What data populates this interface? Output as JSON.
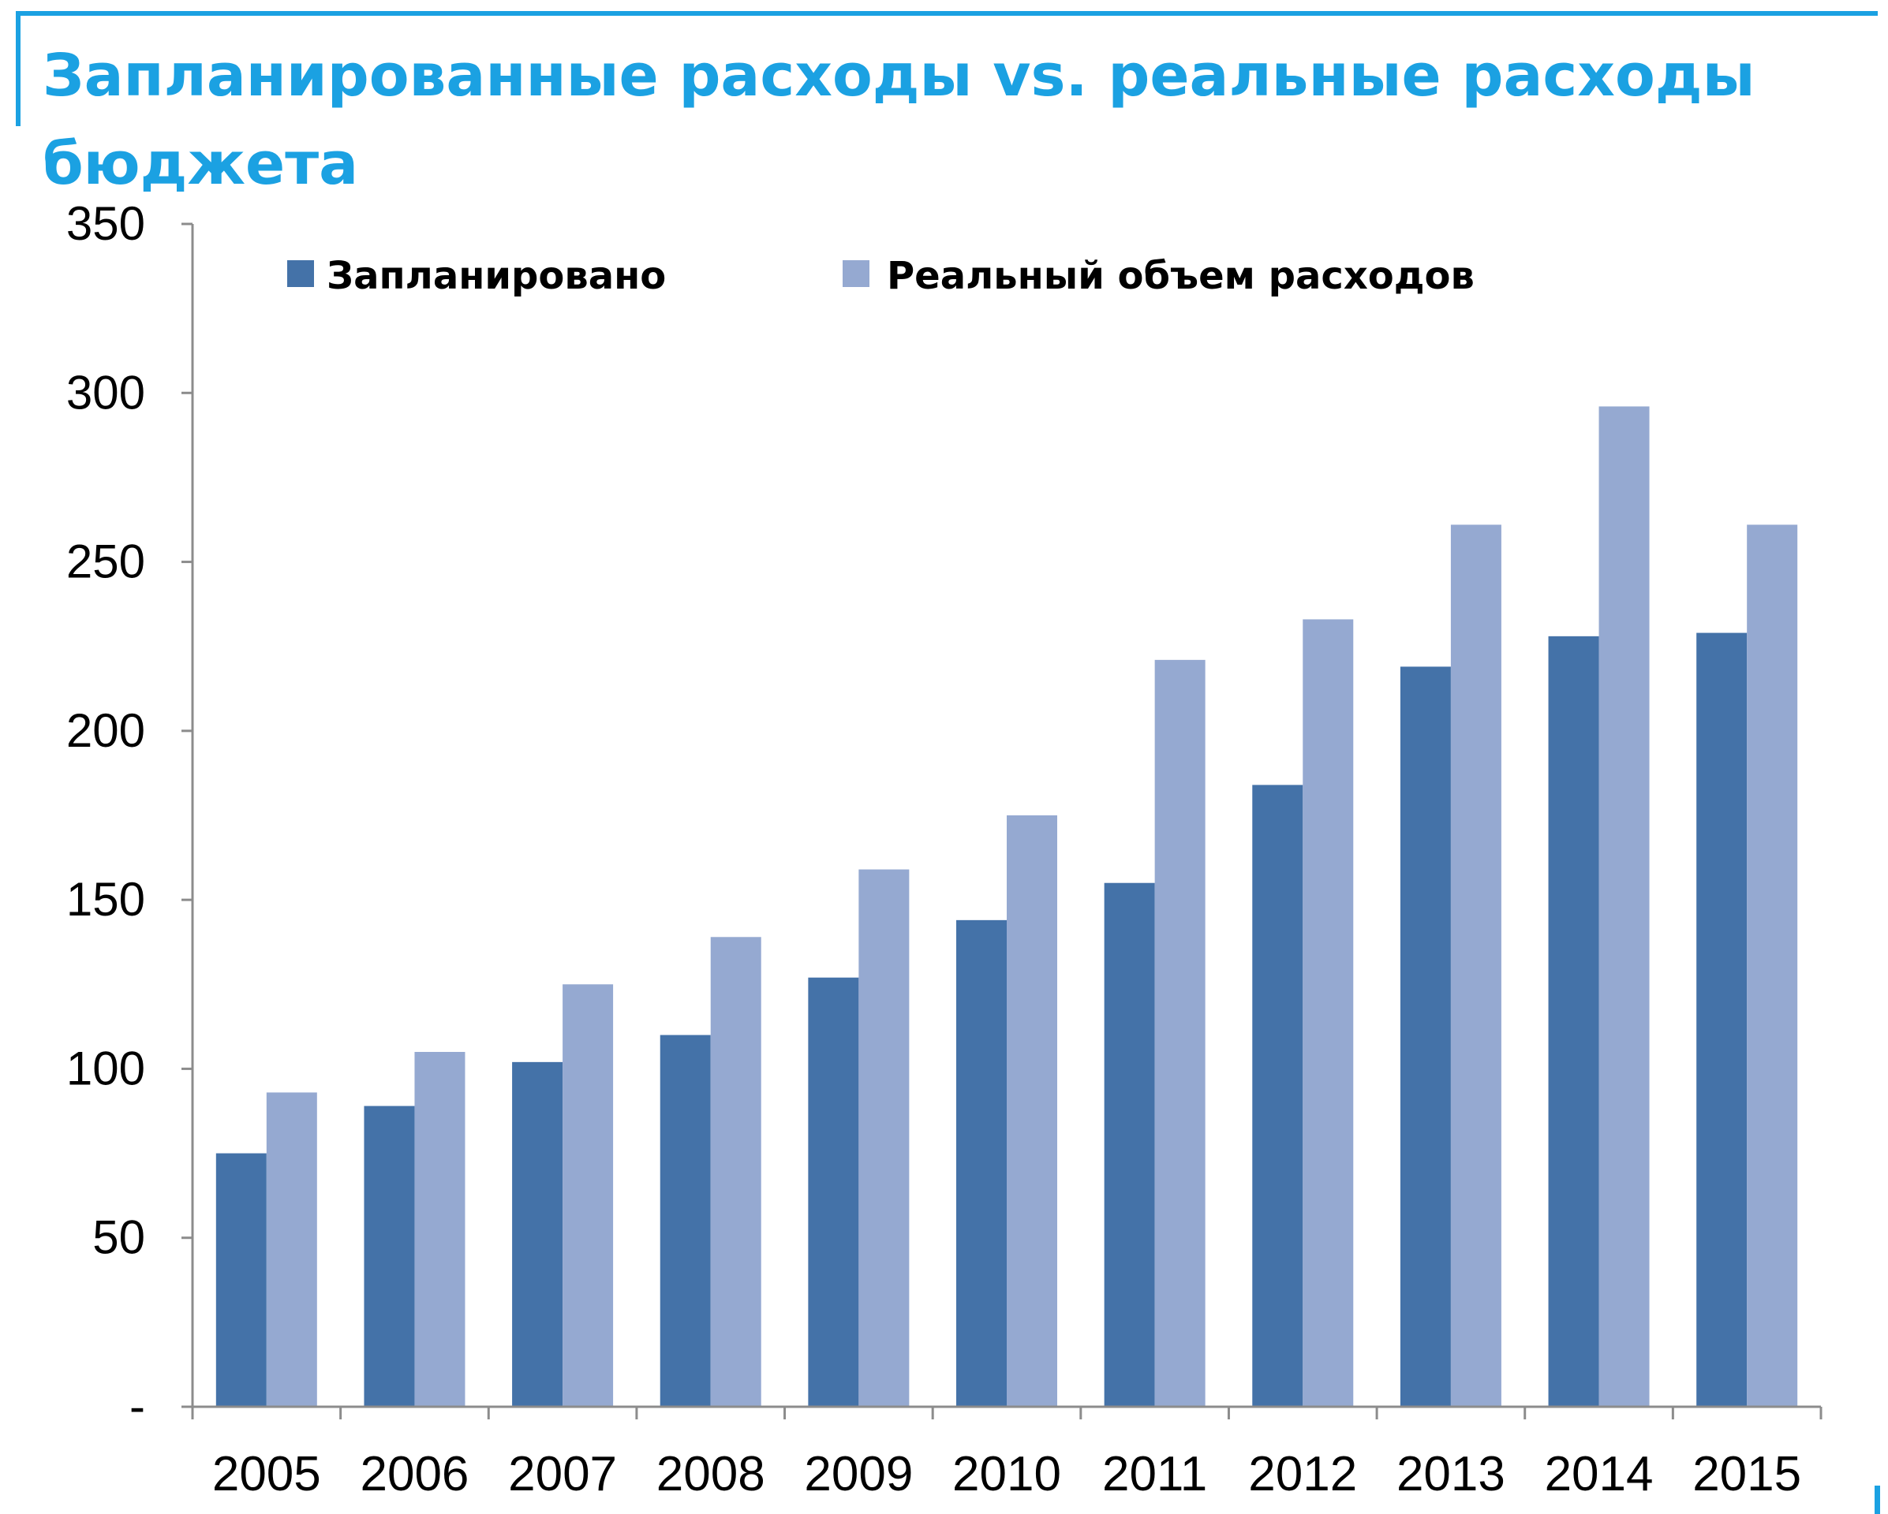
{
  "colors": {
    "accent": "#1BA1E2",
    "series_planned": "#4472A8",
    "series_actual": "#95A9D1",
    "axis": "#8C8C8C",
    "text": "#000000"
  },
  "chart_data": {
    "type": "bar",
    "title": "Запланированные расходы vs. реальные расходы бюджета",
    "xlabel": "",
    "ylabel": "",
    "categories": [
      "2005",
      "2006",
      "2007",
      "2008",
      "2009",
      "2010",
      "2011",
      "2012",
      "2013",
      "2014",
      "2015"
    ],
    "series": [
      {
        "name": "Запланировано",
        "color": "#4472A8",
        "values": [
          75,
          89,
          102,
          110,
          127,
          144,
          155,
          184,
          219,
          228,
          229
        ]
      },
      {
        "name": "Реальный объем расходов",
        "color": "#95A9D1",
        "values": [
          93,
          105,
          125,
          139,
          159,
          175,
          221,
          233,
          261,
          296,
          261
        ]
      }
    ],
    "ylim": [
      0,
      350
    ],
    "yticks": [
      0,
      50,
      100,
      150,
      200,
      250,
      300,
      350
    ],
    "ytick_labels": [
      "-",
      "50",
      "100",
      "150",
      "200",
      "250",
      "300",
      "350"
    ],
    "grid": false,
    "legend_position": "top-left, inside plot"
  }
}
